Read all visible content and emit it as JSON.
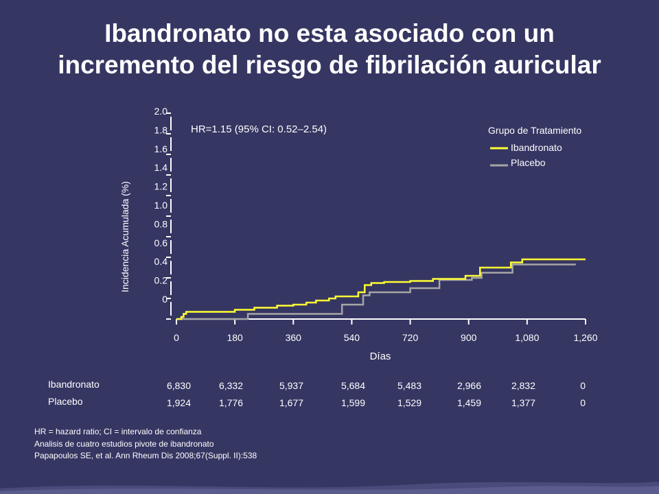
{
  "title": {
    "line1": "Ibandronato no esta asociado con un",
    "line2": "incremento del riesgo de fibrilación auricular"
  },
  "colors": {
    "background": "#363663",
    "ibandronato": "#ffff33",
    "placebo": "#a6a6a6",
    "text": "#ffffff"
  },
  "chart_data": {
    "type": "line",
    "step": true,
    "annotation": "HR=1.15 (95% CI: 0.52–2.54)",
    "xlabel": "Días",
    "ylabel": "Incidencia Acumulada (%)",
    "xlim": [
      0,
      1260
    ],
    "ylim": [
      0,
      2.0
    ],
    "xticks": [
      "0",
      "180",
      "360",
      "540",
      "720",
      "900",
      "1,080",
      "1,260"
    ],
    "yticks": [
      "2.0",
      "1.8",
      "1.6",
      "1.4",
      "1.2",
      "1.0",
      "0.8",
      "0.6",
      "0.4",
      "0.2",
      "0"
    ],
    "legend_title": "Grupo de Tratamiento",
    "legend_position": "top-right",
    "series": [
      {
        "name": "Ibandronato",
        "color": "#ffff33",
        "points": [
          [
            0,
            0
          ],
          [
            15,
            0
          ],
          [
            15,
            0.02
          ],
          [
            22,
            0.02
          ],
          [
            22,
            0.05
          ],
          [
            30,
            0.05
          ],
          [
            30,
            0.07
          ],
          [
            180,
            0.07
          ],
          [
            180,
            0.09
          ],
          [
            240,
            0.09
          ],
          [
            240,
            0.11
          ],
          [
            310,
            0.11
          ],
          [
            310,
            0.13
          ],
          [
            360,
            0.13
          ],
          [
            360,
            0.14
          ],
          [
            400,
            0.14
          ],
          [
            400,
            0.16
          ],
          [
            430,
            0.16
          ],
          [
            430,
            0.18
          ],
          [
            470,
            0.18
          ],
          [
            470,
            0.2
          ],
          [
            490,
            0.2
          ],
          [
            490,
            0.22
          ],
          [
            560,
            0.22
          ],
          [
            560,
            0.26
          ],
          [
            580,
            0.26
          ],
          [
            580,
            0.33
          ],
          [
            600,
            0.33
          ],
          [
            600,
            0.35
          ],
          [
            640,
            0.35
          ],
          [
            640,
            0.36
          ],
          [
            720,
            0.36
          ],
          [
            720,
            0.37
          ],
          [
            790,
            0.37
          ],
          [
            790,
            0.39
          ],
          [
            890,
            0.39
          ],
          [
            890,
            0.42
          ],
          [
            935,
            0.42
          ],
          [
            935,
            0.5
          ],
          [
            1030,
            0.5
          ],
          [
            1030,
            0.55
          ],
          [
            1065,
            0.55
          ],
          [
            1065,
            0.58
          ],
          [
            1260,
            0.58
          ]
        ]
      },
      {
        "name": "Placebo",
        "color": "#a6a6a6",
        "points": [
          [
            0,
            0
          ],
          [
            220,
            0
          ],
          [
            220,
            0.05
          ],
          [
            510,
            0.05
          ],
          [
            510,
            0.14
          ],
          [
            575,
            0.14
          ],
          [
            575,
            0.23
          ],
          [
            595,
            0.23
          ],
          [
            595,
            0.26
          ],
          [
            720,
            0.26
          ],
          [
            720,
            0.3
          ],
          [
            810,
            0.3
          ],
          [
            810,
            0.38
          ],
          [
            910,
            0.38
          ],
          [
            910,
            0.4
          ],
          [
            940,
            0.4
          ],
          [
            940,
            0.45
          ],
          [
            1035,
            0.45
          ],
          [
            1035,
            0.53
          ],
          [
            1230,
            0.53
          ]
        ]
      }
    ]
  },
  "risk_table": {
    "rows": [
      {
        "name": "Ibandronato",
        "values": [
          "6,830",
          "6,332",
          "5,937",
          "5,684",
          "5,483",
          "2,966",
          "2,832",
          "0"
        ]
      },
      {
        "name": "Placebo",
        "values": [
          "1,924",
          "1,776",
          "1,677",
          "1,599",
          "1,529",
          "1,459",
          "1,377",
          "0"
        ]
      }
    ]
  },
  "footnotes": [
    "HR = hazard ratio; CI = intervalo de confianza",
    "Analisis de cuatro estudios pivote de ibandronato",
    "Papapoulos SE, et al. Ann Rheum Dis 2008;67(Suppl. II):538"
  ]
}
